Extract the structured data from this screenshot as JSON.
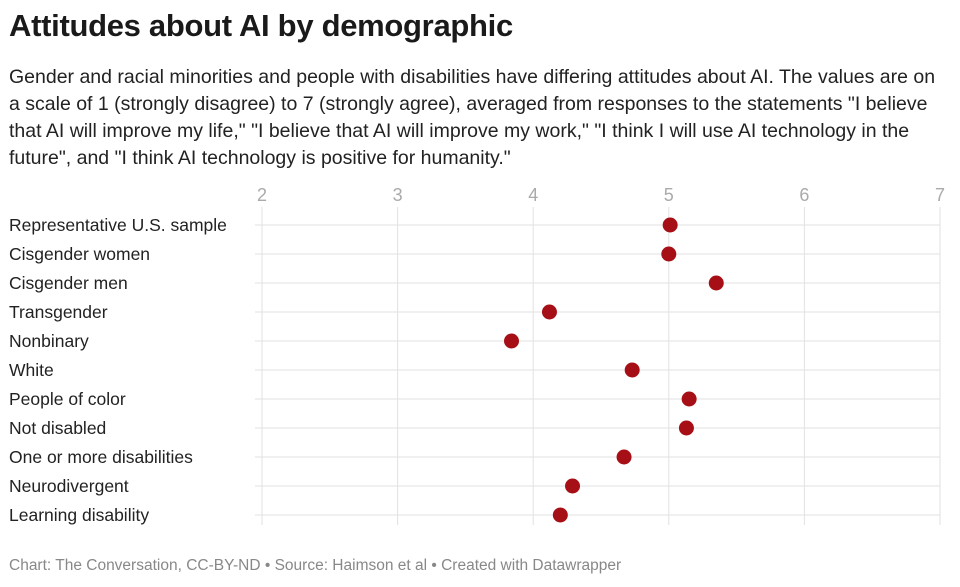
{
  "title": "Attitudes about AI by demographic",
  "subtitle": "Gender and racial minorities and people with disabilities have differing attitudes about AI. The values are on a scale of 1 (strongly disagree) to 7 (strongly agree), averaged from responses to the statements \"I believe that AI will improve my life,\" \"I believe that AI will improve my work,\" \"I think I will use AI technology in the future\", and \"I think AI technology is positive for humanity.\"",
  "footer": "Chart: The Conversation, CC-BY-ND • Source: Haimson et al • Created with Datawrapper",
  "colors": {
    "dot": "#a50f15",
    "grid": "#e2e2e2",
    "tick_text": "#aaaaaa",
    "label_text": "#222222"
  },
  "chart_data": {
    "type": "scatter",
    "title": "Attitudes about AI by demographic",
    "xlabel": "",
    "ylabel": "",
    "xlim": [
      2,
      7
    ],
    "xticks": [
      2,
      3,
      4,
      5,
      6,
      7
    ],
    "grid": true,
    "legend": "none",
    "categories": [
      "Representative U.S. sample",
      "Cisgender women",
      "Cisgender men",
      "Transgender",
      "Nonbinary",
      "White",
      "People of color",
      "Not disabled",
      "One or more disabilities",
      "Neurodivergent",
      "Learning disability"
    ],
    "values": [
      5.01,
      5.0,
      5.35,
      4.12,
      3.84,
      4.73,
      5.15,
      5.13,
      4.67,
      4.29,
      4.2
    ]
  }
}
